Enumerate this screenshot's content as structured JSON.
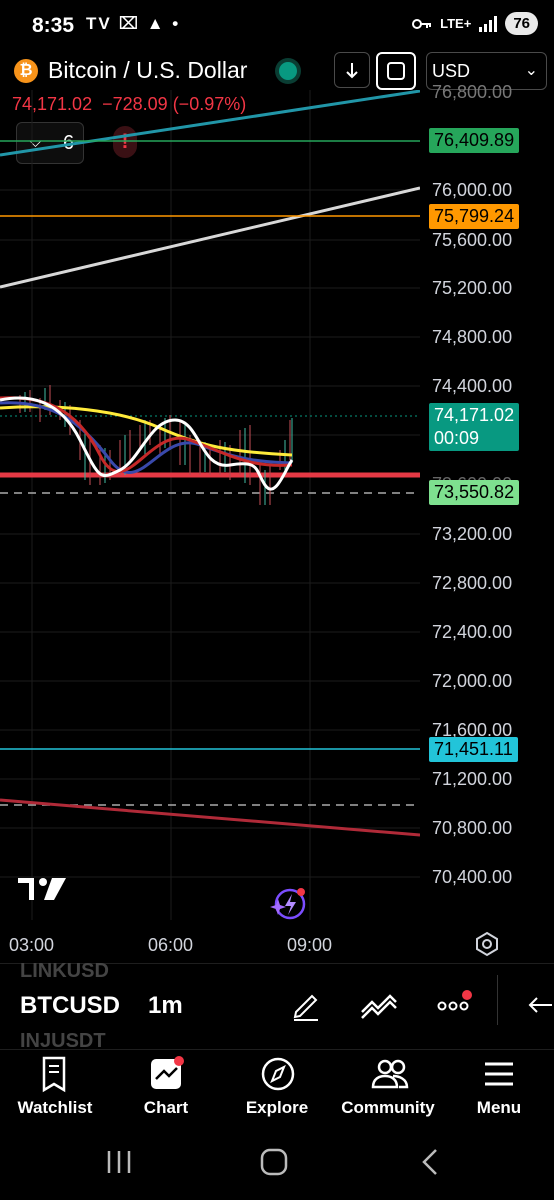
{
  "status_bar": {
    "time": "8:35",
    "left_icons": "TV ⌧ ▲ •",
    "network": "LTE+",
    "battery": "76"
  },
  "header": {
    "symbol_icon": "bitcoin-icon",
    "title": "Bitcoin / U.S. Dollar",
    "last_price": "74,171.02",
    "change": "−728.09",
    "change_pct": "(−0.97%)",
    "currency": "USD",
    "indicators_count": "6",
    "alert_icon": "!",
    "colors": {
      "down": "#f23645",
      "live": "#089981"
    }
  },
  "price_axis": {
    "top_partial": "76,800.00",
    "ticks": [
      "76,000.00",
      "75,600.00",
      "75,200.00",
      "74,800.00",
      "74,400.00",
      "73,200.00",
      "72,800.00",
      "72,400.00",
      "72,000.00",
      "71,600.00",
      "71,200.00",
      "70,800.00",
      "70,400.00"
    ],
    "partial_under_tag": "73,600.00",
    "tags": [
      {
        "value": "76,409.89",
        "color": "#26a65b"
      },
      {
        "value": "75,799.24",
        "color": "#ff9800"
      },
      {
        "value": "74,171.02",
        "color": "#089981"
      },
      {
        "value": "00:09",
        "color": "#089981"
      },
      {
        "value": "73,550.82",
        "color": "#7ee08f"
      },
      {
        "value": "71,451.11",
        "color": "#22c4d9"
      }
    ]
  },
  "time_axis": [
    "03:00",
    "06:00",
    "09:00"
  ],
  "toolbar": {
    "symbol": "BTCUSD",
    "symbol_above": "LINKUSD",
    "symbol_below": "INJUSDT",
    "interval": "1m"
  },
  "nav": {
    "watchlist": "Watchlist",
    "chart": "Chart",
    "explore": "Explore",
    "community": "Community",
    "menu": "Menu"
  }
}
